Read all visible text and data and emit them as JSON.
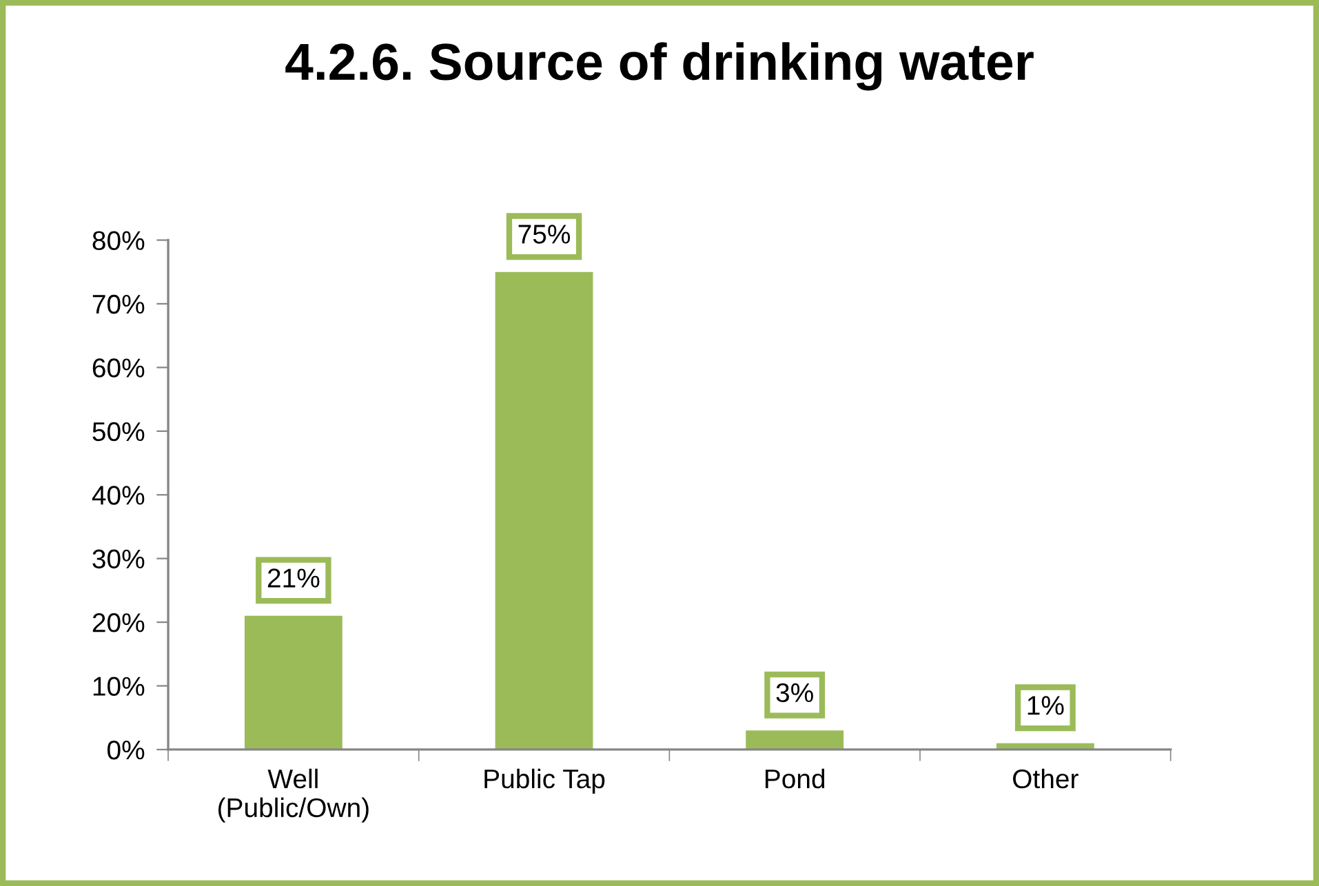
{
  "chart_data": {
    "type": "bar",
    "title": "4.2.6. Source of drinking water",
    "categories": [
      "Well\n(Public/Own)",
      "Public Tap",
      "Pond",
      "Other"
    ],
    "values": [
      21,
      75,
      3,
      1
    ],
    "color": "#9bbb59",
    "value_labels": [
      "21%",
      "75%",
      "3%",
      "1%"
    ],
    "ylim": [
      0,
      80
    ],
    "yticks": [
      {
        "value": 0,
        "label": "0%"
      },
      {
        "value": 10,
        "label": "10%"
      },
      {
        "value": 20,
        "label": "20%"
      },
      {
        "value": 30,
        "label": "30%"
      },
      {
        "value": 40,
        "label": "40%"
      },
      {
        "value": 50,
        "label": "50%"
      },
      {
        "value": 60,
        "label": "60%"
      },
      {
        "value": 70,
        "label": "70%"
      },
      {
        "value": 80,
        "label": "80%"
      }
    ]
  }
}
